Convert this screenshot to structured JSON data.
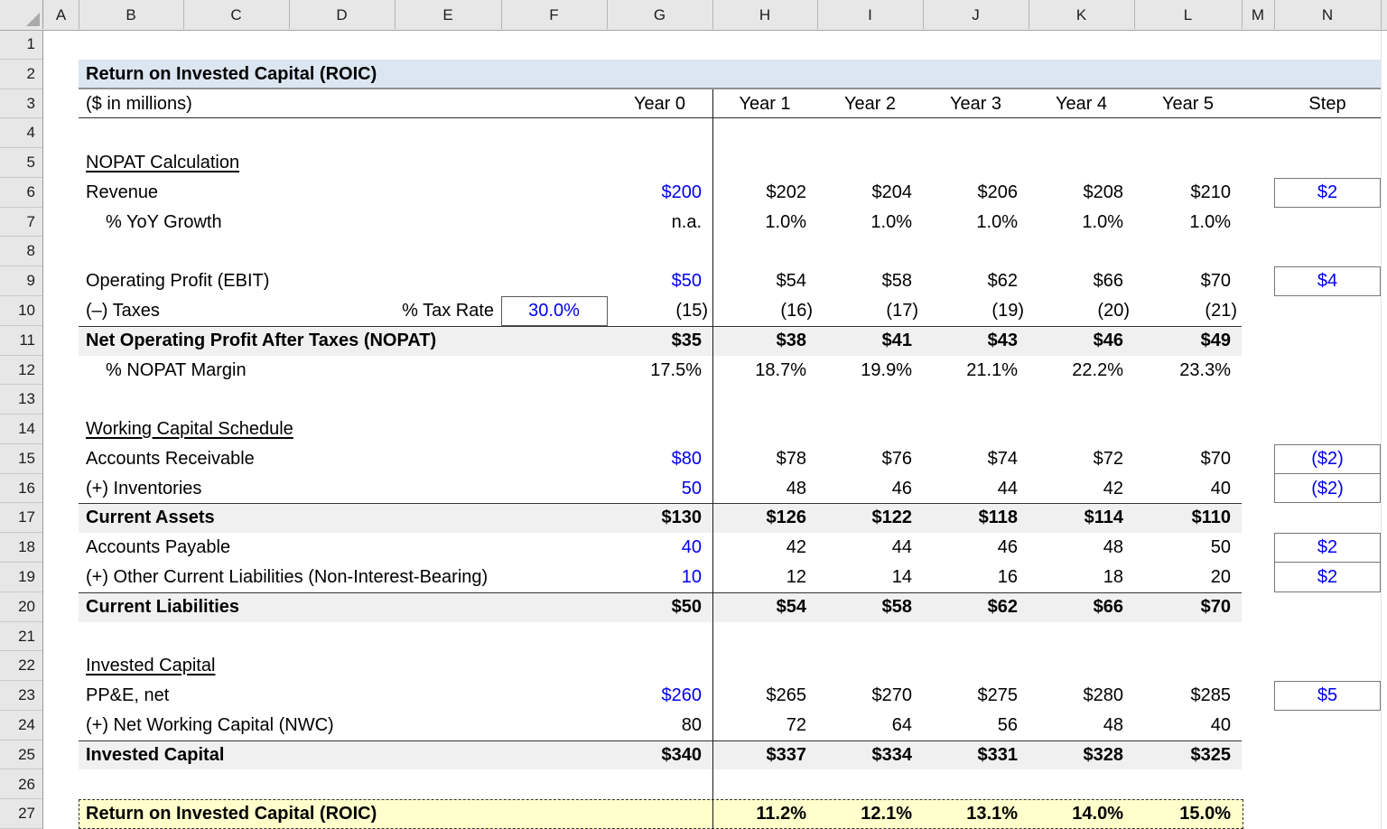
{
  "app": {
    "kind": "excel-spreadsheet"
  },
  "colors": {
    "input_text_blue": "#0000ee",
    "subtotal_band_gray": "#f0f0f0",
    "title_band_blue": "#dce6f1",
    "roic_band_yellow": "#ffffcc",
    "header_gray": "#e7e7e7"
  },
  "grid": {
    "columns": [
      "A",
      "B",
      "C",
      "D",
      "E",
      "F",
      "G",
      "H",
      "I",
      "J",
      "K",
      "L",
      "M",
      "N"
    ],
    "row_numbers": [
      1,
      2,
      3,
      4,
      5,
      6,
      7,
      8,
      9,
      10,
      11,
      12,
      13,
      14,
      15,
      16,
      17,
      18,
      19,
      20,
      21,
      22,
      23,
      24,
      25,
      26,
      27
    ]
  },
  "title": {
    "text": "Return on Invested Capital (ROIC)"
  },
  "header_row": {
    "subtitle": "($ in millions)",
    "year0": "Year 0",
    "years": [
      "Year 1",
      "Year 2",
      "Year 3",
      "Year 4",
      "Year 5"
    ],
    "step": "Step"
  },
  "table": {
    "rows": [
      {
        "row": 5,
        "type": "section",
        "label": "NOPAT Calculation"
      },
      {
        "row": 6,
        "label": "Revenue",
        "y0": "$200",
        "y0_blue": true,
        "vals": [
          "$202",
          "$204",
          "$206",
          "$208",
          "$210"
        ],
        "step": "$2"
      },
      {
        "row": 7,
        "label": "% YoY Growth",
        "indent": true,
        "y0": "n.a.",
        "vals": [
          "1.0%",
          "1.0%",
          "1.0%",
          "1.0%",
          "1.0%"
        ]
      },
      {
        "row": 9,
        "label": "Operating Profit (EBIT)",
        "y0": "$50",
        "y0_blue": true,
        "vals": [
          "$54",
          "$58",
          "$62",
          "$66",
          "$70"
        ],
        "step": "$4"
      },
      {
        "row": 10,
        "label": "(–) Taxes",
        "side_label": "% Tax Rate",
        "input_box": "30.0%",
        "y0": "(15)",
        "paren": true,
        "vals": [
          "(16)",
          "(17)",
          "(19)",
          "(20)",
          "(21)"
        ]
      },
      {
        "row": 11,
        "label": "Net Operating Profit After Taxes (NOPAT)",
        "bold": true,
        "band": true,
        "y0": "$35",
        "vals": [
          "$38",
          "$41",
          "$43",
          "$46",
          "$49"
        ]
      },
      {
        "row": 12,
        "label": "% NOPAT Margin",
        "indent": true,
        "y0": "17.5%",
        "vals": [
          "18.7%",
          "19.9%",
          "21.1%",
          "22.2%",
          "23.3%"
        ]
      },
      {
        "row": 14,
        "type": "section",
        "label": "Working Capital Schedule"
      },
      {
        "row": 15,
        "label": "Accounts Receivable",
        "y0": "$80",
        "y0_blue": true,
        "vals": [
          "$78",
          "$76",
          "$74",
          "$72",
          "$70"
        ],
        "step": "($2)"
      },
      {
        "row": 16,
        "label": "(+) Inventories",
        "y0": "50",
        "y0_blue": true,
        "vals": [
          "48",
          "46",
          "44",
          "42",
          "40"
        ],
        "step": "($2)"
      },
      {
        "row": 17,
        "label": "Current Assets",
        "bold": true,
        "band": true,
        "y0": "$130",
        "vals": [
          "$126",
          "$122",
          "$118",
          "$114",
          "$110"
        ]
      },
      {
        "row": 18,
        "label": "Accounts Payable",
        "y0": "40",
        "y0_blue": true,
        "vals": [
          "42",
          "44",
          "46",
          "48",
          "50"
        ],
        "step": "$2"
      },
      {
        "row": 19,
        "label": "(+) Other Current Liabilities (Non-Interest-Bearing)",
        "y0": "10",
        "y0_blue": true,
        "vals": [
          "12",
          "14",
          "16",
          "18",
          "20"
        ],
        "step": "$2"
      },
      {
        "row": 20,
        "label": "Current Liabilities",
        "bold": true,
        "band": true,
        "y0": "$50",
        "vals": [
          "$54",
          "$58",
          "$62",
          "$66",
          "$70"
        ]
      },
      {
        "row": 22,
        "type": "section",
        "label": "Invested Capital"
      },
      {
        "row": 23,
        "label": "PP&E, net",
        "y0": "$260",
        "y0_blue": true,
        "vals": [
          "$265",
          "$270",
          "$275",
          "$280",
          "$285"
        ],
        "step": "$5"
      },
      {
        "row": 24,
        "label": "(+) Net Working Capital (NWC)",
        "y0": "80",
        "vals": [
          "72",
          "64",
          "56",
          "48",
          "40"
        ]
      },
      {
        "row": 25,
        "label": "Invested Capital",
        "bold": true,
        "band": true,
        "y0": "$340",
        "vals": [
          "$337",
          "$334",
          "$331",
          "$328",
          "$325"
        ]
      },
      {
        "row": 27,
        "label": "Return on Invested Capital (ROIC)",
        "bold": true,
        "roic": true,
        "vals": [
          "11.2%",
          "12.1%",
          "13.1%",
          "14.0%",
          "15.0%"
        ]
      }
    ]
  }
}
